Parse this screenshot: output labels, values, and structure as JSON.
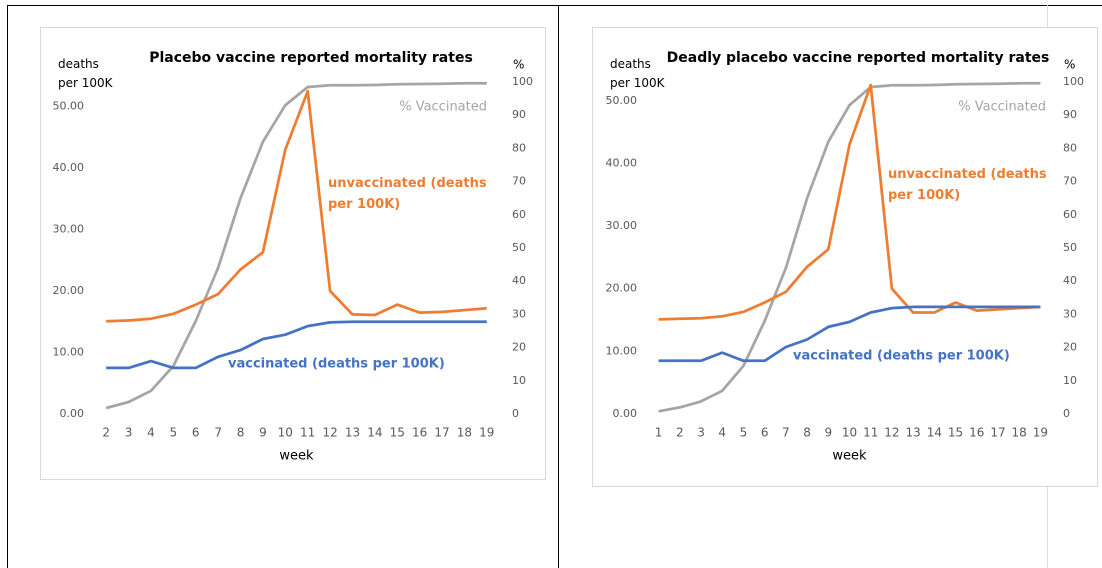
{
  "chart_data": [
    {
      "type": "line",
      "title": "Placebo vaccine reported mortality rates",
      "y_label": "deaths per 100K",
      "y2_label": "%",
      "x_label": "week",
      "categories": [
        "2",
        "3",
        "4",
        "5",
        "6",
        "7",
        "8",
        "9",
        "10",
        "11",
        "12",
        "13",
        "14",
        "15",
        "16",
        "17",
        "18",
        "19"
      ],
      "ylim": [
        0,
        54
      ],
      "yticks": [
        {
          "value": 0,
          "label": "0.00"
        },
        {
          "value": 10,
          "label": "10.00"
        },
        {
          "value": 20,
          "label": "20.00"
        },
        {
          "value": 30,
          "label": "30.00"
        },
        {
          "value": 40,
          "label": "40.00"
        },
        {
          "value": 50,
          "label": "50.00"
        }
      ],
      "y2lim": [
        0,
        100
      ],
      "y2ticks": [
        0,
        10,
        20,
        30,
        40,
        50,
        60,
        70,
        80,
        90,
        100
      ],
      "series": [
        {
          "name": "% Vaccinated",
          "color": "#a5a5a5",
          "axis": "y2",
          "values": [
            1.8,
            3.6,
            7,
            14.5,
            28,
            44,
            65,
            82,
            93,
            98.5,
            99,
            99,
            99.1,
            99.3,
            99.4,
            99.5,
            99.6,
            99.6
          ]
        },
        {
          "name": "unvaccinated (deaths per 100K)",
          "color": "#ed7d31",
          "values": [
            15.1,
            15.2,
            15.5,
            16.3,
            17.8,
            19.5,
            23.5,
            26.3,
            43,
            52.5,
            20,
            16.2,
            16.1,
            17.8,
            16.5,
            16.6,
            16.9,
            17.2
          ]
        },
        {
          "name": "vaccinated (deaths per 100K)",
          "color": "#4472c4",
          "values": [
            7.5,
            7.5,
            8.6,
            7.5,
            7.5,
            9.3,
            10.4,
            12.2,
            12.9,
            14.3,
            14.9,
            15,
            15,
            15,
            15,
            15,
            15,
            15
          ]
        }
      ]
    },
    {
      "type": "line",
      "title": "Deadly placebo vaccine reported mortality rates",
      "y_label": "deaths per 100K",
      "y2_label": "%",
      "x_label": "week",
      "categories": [
        "1",
        "2",
        "3",
        "4",
        "5",
        "6",
        "7",
        "8",
        "9",
        "10",
        "11",
        "12",
        "13",
        "14",
        "15",
        "16",
        "17",
        "18",
        "19"
      ],
      "ylim": [
        0,
        53
      ],
      "yticks": [
        {
          "value": 0,
          "label": "0.00"
        },
        {
          "value": 10,
          "label": "10.00"
        },
        {
          "value": 20,
          "label": "20.00"
        },
        {
          "value": 30,
          "label": "30.00"
        },
        {
          "value": 40,
          "label": "40.00"
        },
        {
          "value": 50,
          "label": "50.00"
        }
      ],
      "y2lim": [
        0,
        100
      ],
      "y2ticks": [
        0,
        10,
        20,
        30,
        40,
        50,
        60,
        70,
        80,
        90,
        100
      ],
      "series": [
        {
          "name": "% Vaccinated",
          "color": "#a5a5a5",
          "axis": "y2",
          "values": [
            0.8,
            2,
            3.8,
            7,
            14.5,
            28,
            44,
            65,
            82,
            93,
            98.5,
            99,
            99,
            99.1,
            99.3,
            99.4,
            99.5,
            99.6,
            99.6
          ]
        },
        {
          "name": "unvaccinated (deaths per 100K)",
          "color": "#ed7d31",
          "values": [
            15.1,
            15.2,
            15.3,
            15.6,
            16.3,
            17.8,
            19.5,
            23.5,
            26.3,
            43,
            52.5,
            20,
            16.2,
            16.2,
            17.8,
            16.5,
            16.7,
            16.9,
            17.1
          ]
        },
        {
          "name": "vaccinated (deaths per 100K)",
          "color": "#4472c4",
          "values": [
            8.5,
            8.5,
            8.5,
            9.8,
            8.5,
            8.5,
            10.7,
            11.9,
            13.9,
            14.7,
            16.2,
            16.9,
            17.1,
            17.1,
            17.1,
            17.1,
            17.1,
            17.1,
            17.1
          ]
        }
      ]
    }
  ]
}
